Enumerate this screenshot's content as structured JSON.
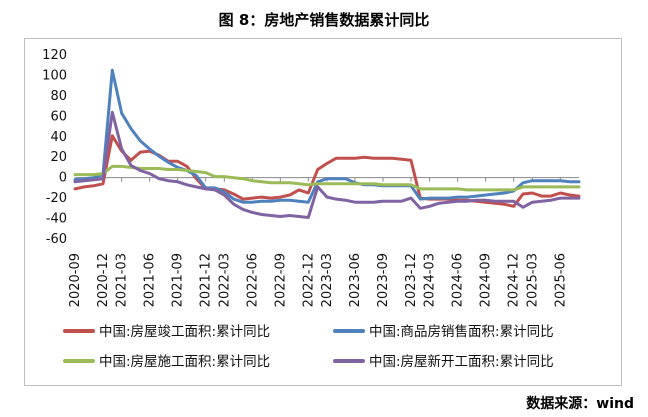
{
  "figure": {
    "title": "图 8：房地产销售数据累计同比",
    "source": "数据来源：wind"
  },
  "chart_data": {
    "type": "line",
    "ylim": [
      -60,
      120
    ],
    "yticks": [
      -60,
      -40,
      -20,
      0,
      20,
      40,
      60,
      80,
      100,
      120
    ],
    "x": [
      "2020-09",
      "2020-10",
      "2020-11",
      "2020-12",
      "2021-02",
      "2021-03",
      "2021-04",
      "2021-05",
      "2021-06",
      "2021-07",
      "2021-08",
      "2021-09",
      "2021-10",
      "2021-11",
      "2021-12",
      "2022-02",
      "2022-03",
      "2022-04",
      "2022-05",
      "2022-06",
      "2022-07",
      "2022-08",
      "2022-09",
      "2022-10",
      "2022-11",
      "2022-12",
      "2023-02",
      "2023-03",
      "2023-04",
      "2023-05",
      "2023-06",
      "2023-07",
      "2023-08",
      "2023-09",
      "2023-10",
      "2023-11",
      "2023-12",
      "2024-02",
      "2024-03",
      "2024-04",
      "2024-05",
      "2024-06",
      "2024-07",
      "2024-08",
      "2024-09",
      "2024-10",
      "2024-11",
      "2024-12",
      "2025-02",
      "2025-03",
      "2025-04",
      "2025-05",
      "2025-06",
      "2025-07",
      "2025-08"
    ],
    "xtick_labels": [
      "2020-09",
      "2020-12",
      "2021-03",
      "2021-06",
      "2021-09",
      "2021-12",
      "2022-03",
      "2022-06",
      "2022-09",
      "2022-12",
      "2023-03",
      "2023-06",
      "2023-09",
      "2023-12",
      "2024-03",
      "2024-06",
      "2024-09",
      "2024-12",
      "2025-03",
      "2025-06"
    ],
    "series": [
      {
        "name": "中国:房屋竣工面积:累计同比",
        "color": "#c0504d",
        "values": [
          -11,
          -9,
          -8,
          -6,
          41,
          26,
          17,
          25,
          26,
          22,
          16,
          16,
          11,
          -1,
          -11,
          -11,
          -12,
          -16,
          -21,
          -20,
          -19,
          -20,
          -19,
          -17,
          -12,
          -15,
          8,
          14,
          19,
          19,
          19,
          20,
          19,
          19,
          19,
          18,
          17,
          -20,
          -21,
          -21,
          -21,
          -22,
          -22,
          -23,
          -24,
          -25,
          -26,
          -28,
          -16,
          -15,
          -18,
          -18,
          -15,
          -17,
          -18
        ]
      },
      {
        "name": "中国:商品房销售面积:累计同比",
        "color": "#4f81bd",
        "values": [
          -2,
          -1,
          0,
          3,
          105,
          63,
          48,
          36,
          28,
          21,
          15,
          10,
          7,
          2,
          -10,
          -10,
          -14,
          -21,
          -24,
          -24,
          -23,
          -23,
          -22,
          -22,
          -23,
          -24,
          -4,
          -1,
          -1,
          -1,
          -5,
          -7,
          -7,
          -8,
          -8,
          -8,
          -8,
          -21,
          -20,
          -20,
          -20,
          -19,
          -19,
          -18,
          -17,
          -16,
          -15,
          -13,
          -5,
          -3,
          -3,
          -3,
          -3,
          -4,
          -4
        ]
      },
      {
        "name": "中国:房屋施工面积:累计同比",
        "color": "#9bbb59",
        "values": [
          3,
          3,
          3,
          4,
          11,
          11,
          10,
          9,
          9,
          9,
          8,
          8,
          7,
          6,
          5,
          1,
          1,
          0,
          -1,
          -3,
          -4,
          -5,
          -5,
          -5,
          -6,
          -7,
          -6,
          -6,
          -6,
          -6,
          -6,
          -6,
          -6,
          -7,
          -7,
          -7,
          -7,
          -11,
          -11,
          -11,
          -11,
          -11,
          -12,
          -12,
          -12,
          -12,
          -12,
          -12,
          -9,
          -9,
          -9,
          -9,
          -9,
          -9,
          -9
        ]
      },
      {
        "name": "中国:房屋新开工面积:累计同比",
        "color": "#8064a2",
        "values": [
          -4,
          -3,
          -2,
          -1,
          64,
          28,
          12,
          7,
          4,
          -1,
          -3,
          -4,
          -7,
          -9,
          -11,
          -12,
          -17,
          -26,
          -31,
          -34,
          -36,
          -37,
          -38,
          -37,
          -38,
          -39,
          -9,
          -19,
          -21,
          -22,
          -24,
          -24,
          -24,
          -23,
          -23,
          -23,
          -20,
          -30,
          -28,
          -25,
          -24,
          -23,
          -23,
          -22,
          -22,
          -23,
          -23,
          -23,
          -29,
          -24,
          -23,
          -22,
          -20,
          -20,
          -20
        ]
      }
    ]
  }
}
